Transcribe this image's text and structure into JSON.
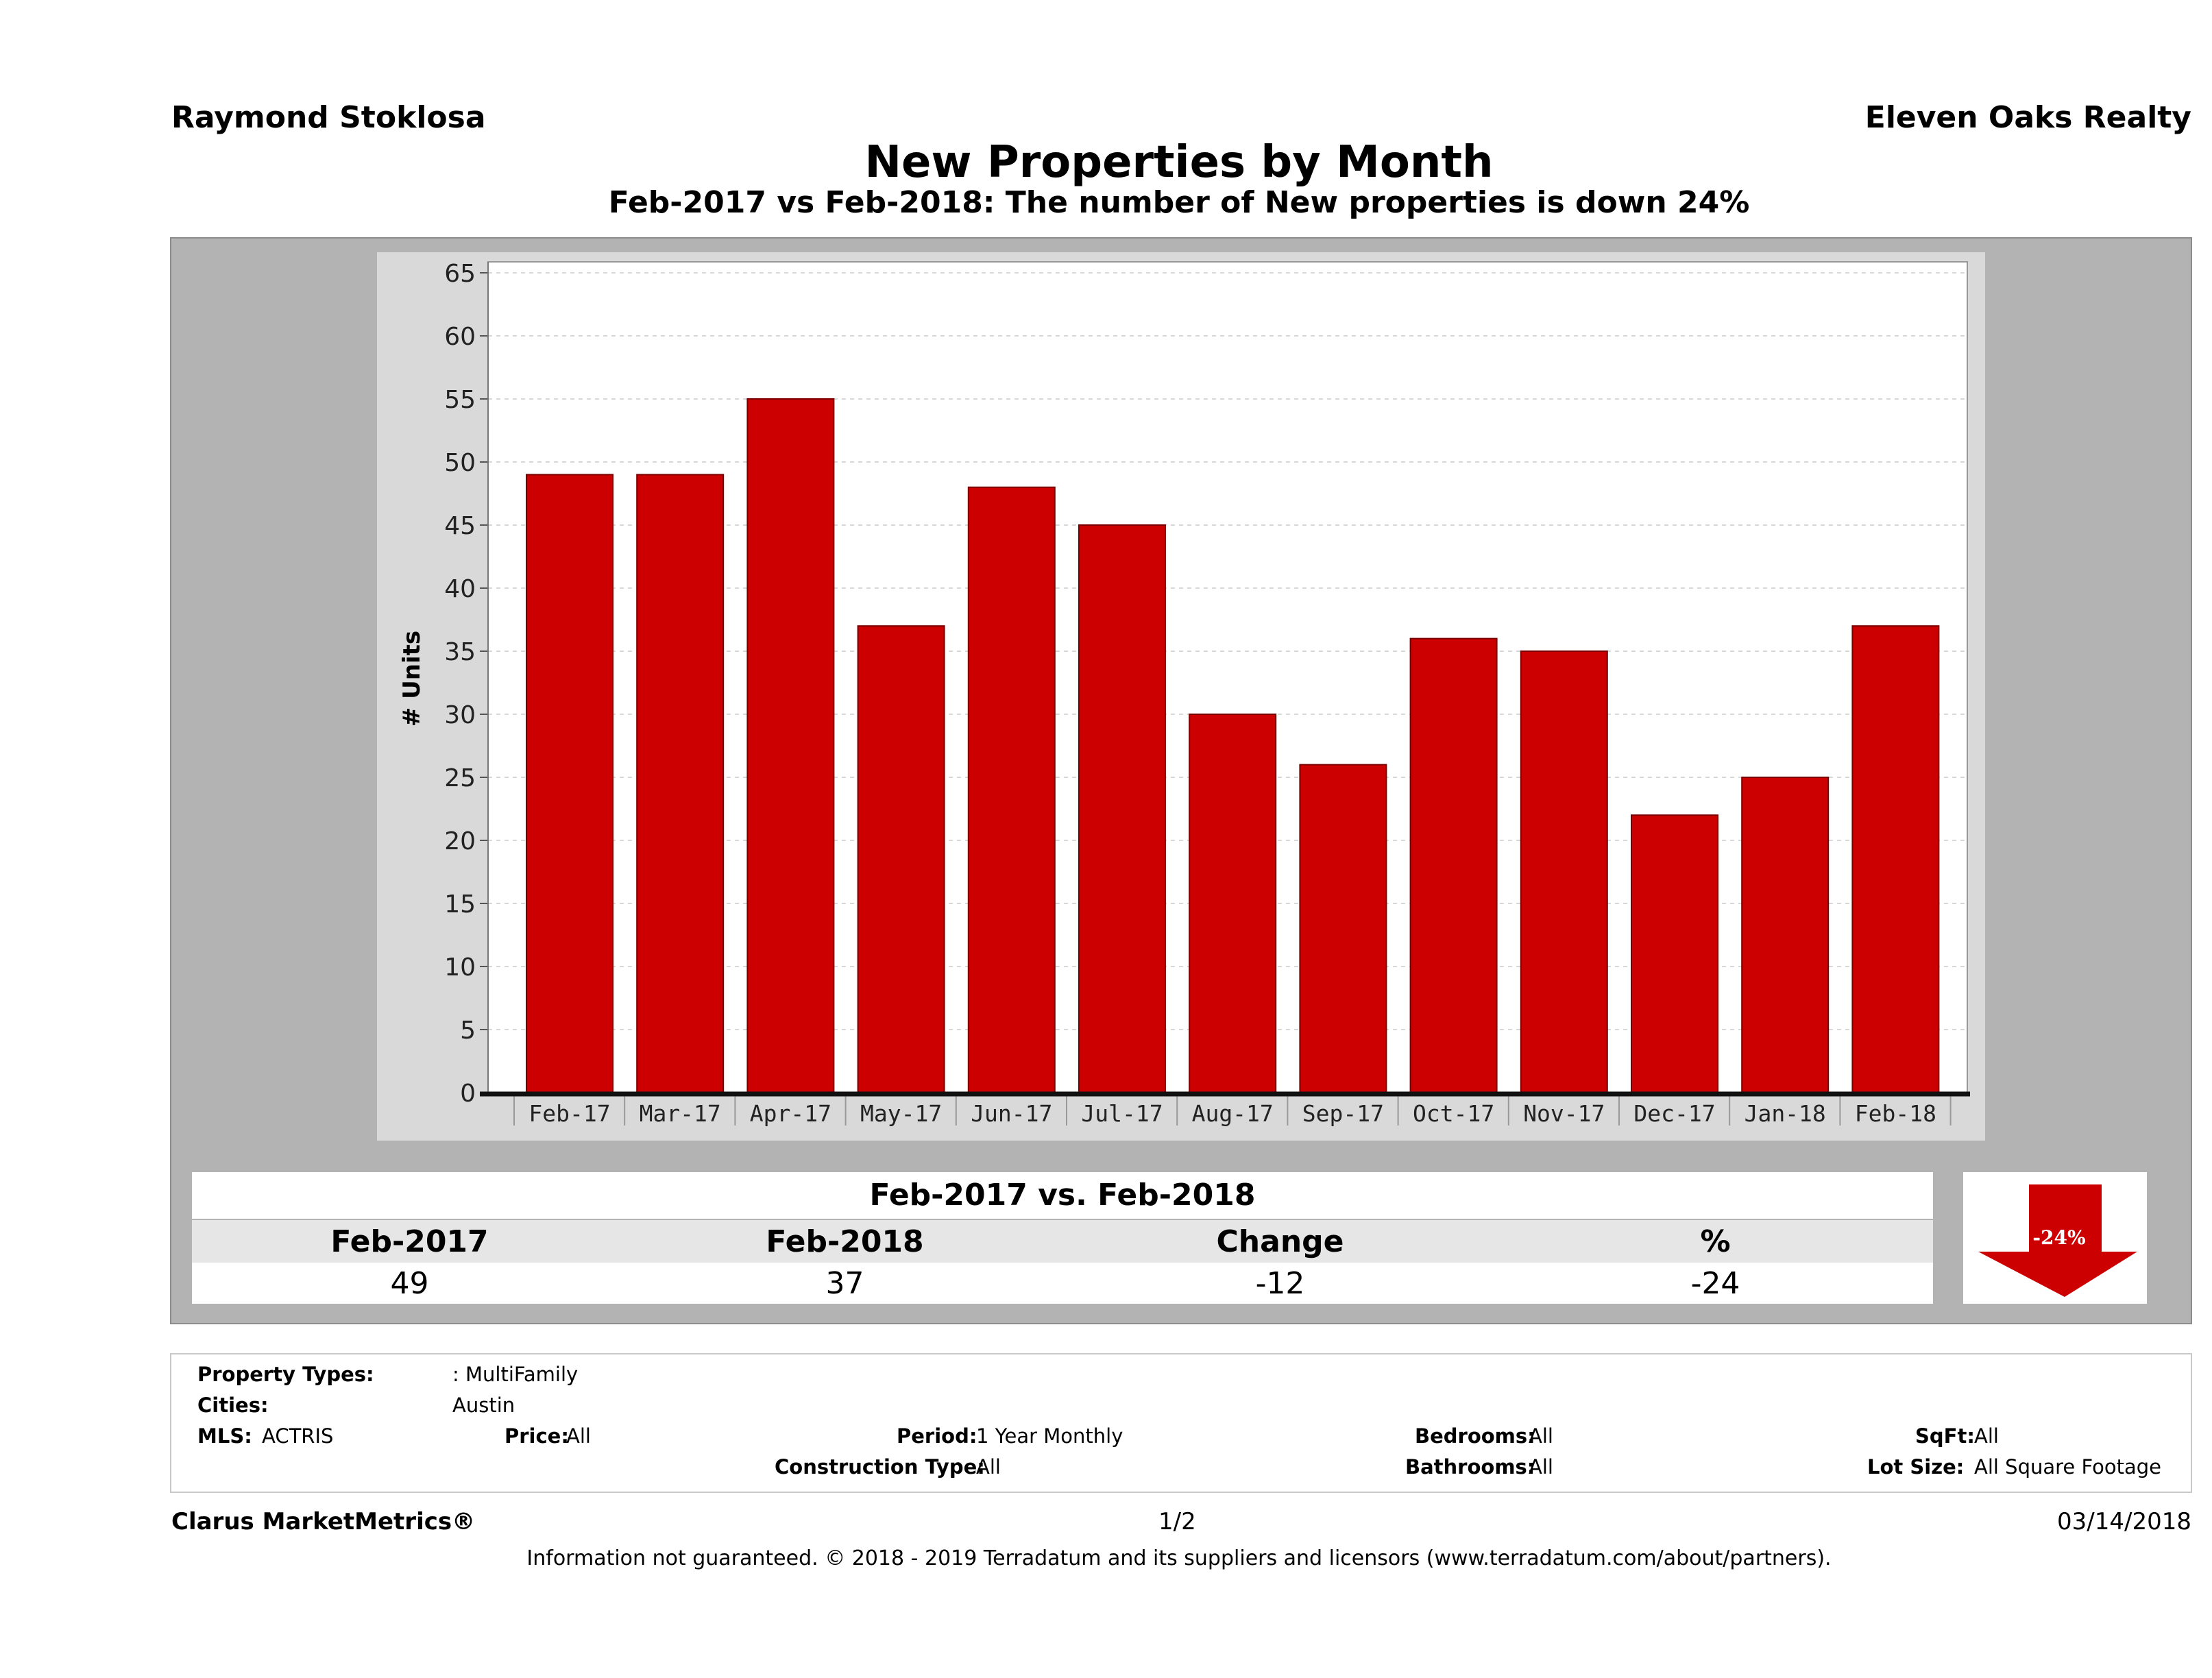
{
  "header": {
    "agent": "Raymond Stoklosa",
    "company": "Eleven Oaks Realty",
    "title": "New Properties by Month",
    "subtitle": "Feb-2017 vs Feb-2018: The number of New  properties is down 24%"
  },
  "chart_data": {
    "type": "bar",
    "categories": [
      "Feb-17",
      "Mar-17",
      "Apr-17",
      "May-17",
      "Jun-17",
      "Jul-17",
      "Aug-17",
      "Sep-17",
      "Oct-17",
      "Nov-17",
      "Dec-17",
      "Jan-18",
      "Feb-18"
    ],
    "values": [
      49,
      49,
      55,
      37,
      48,
      45,
      30,
      26,
      36,
      35,
      22,
      25,
      37
    ],
    "ylabel": "# Units",
    "ylim": [
      0,
      65
    ],
    "yticks": [
      0,
      5,
      10,
      15,
      20,
      25,
      30,
      35,
      40,
      45,
      50,
      55,
      60,
      65
    ],
    "bar_color": "#cc0000",
    "grid": true
  },
  "comparison": {
    "heading": "Feb-2017 vs. Feb-2018",
    "columns": [
      "Feb-2017",
      "Feb-2018",
      "Change",
      "%"
    ],
    "values": [
      "49",
      "37",
      "-12",
      "-24"
    ],
    "badge": "-24%",
    "badge_color": "#cc0000"
  },
  "filters": {
    "property_types_label": "Property Types:",
    "property_types_value": ": MultiFamily",
    "cities_label": "Cities:",
    "cities_value": "Austin",
    "mls_label": "MLS:",
    "mls_value": "ACTRIS",
    "price_label": "Price:",
    "price_value": "All",
    "period_label": "Period:",
    "period_value": "1 Year Monthly",
    "construction_label": "Construction Type:",
    "construction_value": "All",
    "bedrooms_label": "Bedrooms:",
    "bedrooms_value": "All",
    "bathrooms_label": "Bathrooms:",
    "bathrooms_value": "All",
    "sqft_label": "SqFt:",
    "sqft_value": "All",
    "lotsize_label": "Lot Size:",
    "lotsize_value": "All Square Footage"
  },
  "footer": {
    "brand": "Clarus MarketMetrics®",
    "page": "1/2",
    "date": "03/14/2018",
    "disclaimer": "Information not guaranteed. © 2018 - 2019 Terradatum and its suppliers and licensors (www.terradatum.com/about/partners)."
  }
}
